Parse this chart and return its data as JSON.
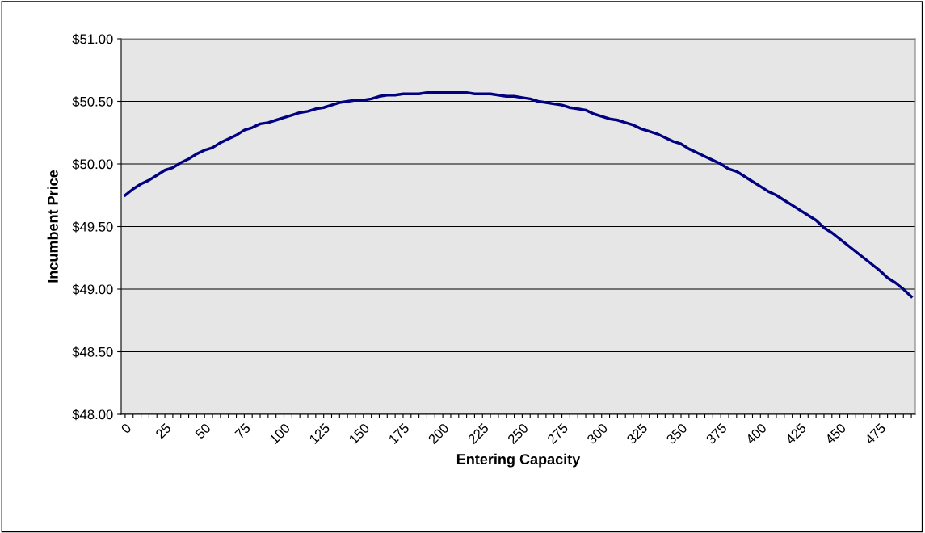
{
  "chart_data": {
    "type": "line",
    "xlabel": "Entering Capacity",
    "ylabel": "Incumbent Price",
    "categories": [
      "0",
      null,
      null,
      null,
      null,
      "25",
      null,
      null,
      null,
      null,
      "50",
      null,
      null,
      null,
      null,
      "75",
      null,
      null,
      null,
      null,
      "100",
      null,
      null,
      null,
      null,
      "125",
      null,
      null,
      null,
      null,
      "150",
      null,
      null,
      null,
      null,
      "175",
      null,
      null,
      null,
      null,
      "200",
      null,
      null,
      null,
      null,
      "225",
      null,
      null,
      null,
      null,
      "250",
      null,
      null,
      null,
      null,
      "275",
      null,
      null,
      null,
      null,
      "300",
      null,
      null,
      null,
      null,
      "325",
      null,
      null,
      null,
      null,
      "350",
      null,
      null,
      null,
      null,
      "375",
      null,
      null,
      null,
      null,
      "400",
      null,
      null,
      null,
      null,
      "425",
      null,
      null,
      null,
      null,
      "450",
      null,
      null,
      null,
      null,
      "475",
      null,
      null,
      null,
      null
    ],
    "series": [
      {
        "color": "#000080",
        "values": [
          49.75,
          49.8,
          49.84,
          49.87,
          49.91,
          49.95,
          49.97,
          50.01,
          50.04,
          50.08,
          50.11,
          50.13,
          50.17,
          50.2,
          50.23,
          50.27,
          50.29,
          50.32,
          50.33,
          50.35,
          50.37,
          50.39,
          50.41,
          50.42,
          50.44,
          50.45,
          50.47,
          50.49,
          50.5,
          50.51,
          50.51,
          50.52,
          50.54,
          50.55,
          50.55,
          50.56,
          50.56,
          50.56,
          50.57,
          50.57,
          50.57,
          50.57,
          50.57,
          50.57,
          50.56,
          50.56,
          50.56,
          50.55,
          50.54,
          50.54,
          50.53,
          50.52,
          50.5,
          50.49,
          50.48,
          50.47,
          50.45,
          50.44,
          50.43,
          50.4,
          50.38,
          50.36,
          50.35,
          50.33,
          50.31,
          50.28,
          50.26,
          50.24,
          50.21,
          50.18,
          50.16,
          50.12,
          50.09,
          50.06,
          50.03,
          50.0,
          49.96,
          49.94,
          49.9,
          49.86,
          49.82,
          49.78,
          49.75,
          49.71,
          49.67,
          49.63,
          49.59,
          49.55,
          49.49,
          49.45,
          49.4,
          49.35,
          49.3,
          49.25,
          49.2,
          49.15,
          49.09,
          49.05,
          49.0,
          48.94
        ]
      }
    ],
    "ylim": [
      48,
      51
    ],
    "yticks": [
      {
        "value": 48,
        "label": "$48.00"
      },
      {
        "value": 48.5,
        "label": "$48.50"
      },
      {
        "value": 49,
        "label": "$49.00"
      },
      {
        "value": 49.5,
        "label": "$49.50"
      },
      {
        "value": 50,
        "label": "$50.00"
      },
      {
        "value": 50.5,
        "label": "$50.50"
      },
      {
        "value": 51,
        "label": "$51.00"
      }
    ],
    "grid": "y",
    "marker": "none",
    "line_style": "solid"
  }
}
